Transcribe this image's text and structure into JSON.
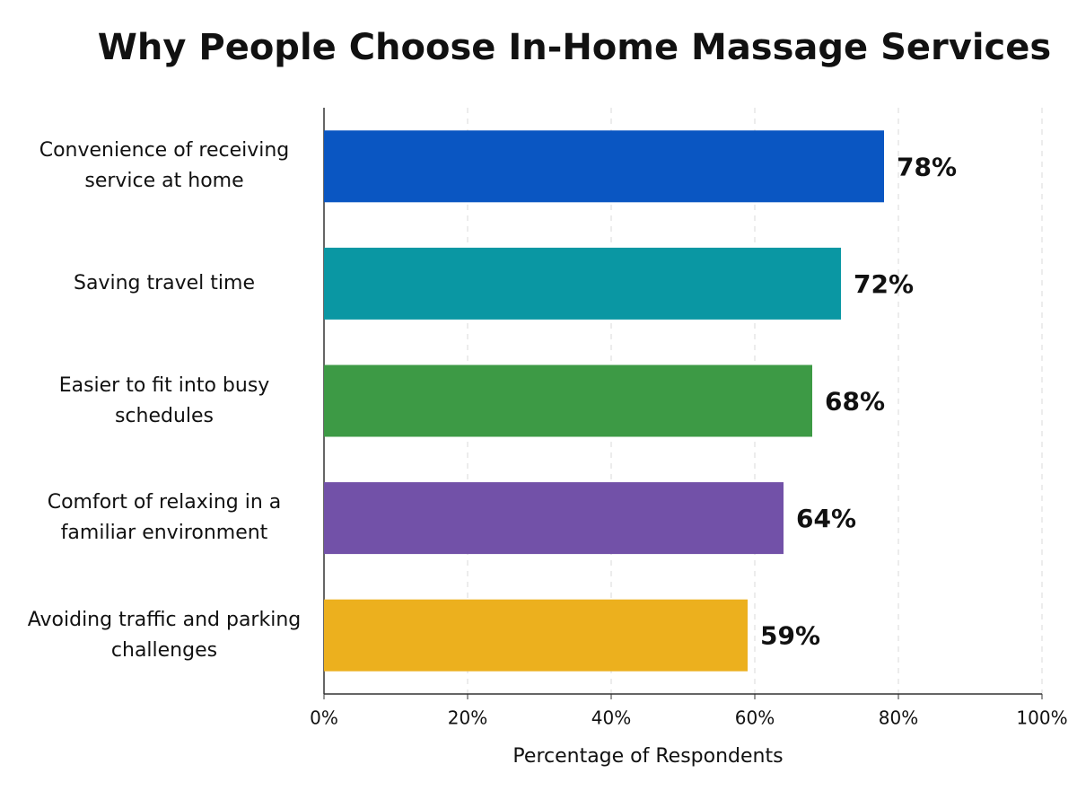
{
  "chart_data": {
    "type": "hbar",
    "title": "Why People Choose In-Home Massage Services",
    "xlabel": "Percentage of Respondents",
    "categories": [
      "Convenience of receiving service at home",
      "Saving travel time",
      "Easier to fit into busy schedules",
      "Comfort of relaxing in a familiar environment",
      "Avoiding traffic and parking challenges"
    ],
    "values": [
      78,
      72,
      68,
      64,
      59
    ],
    "value_labels": [
      "78%",
      "72%",
      "68%",
      "64%",
      "59%"
    ],
    "colors": [
      "#0a56c2",
      "#0a97a3",
      "#3d9a45",
      "#7251a8",
      "#ecb01e"
    ],
    "xlim": [
      0,
      100
    ],
    "xticks": [
      {
        "value": 0,
        "label": "0%"
      },
      {
        "value": 20,
        "label": "20%"
      },
      {
        "value": 40,
        "label": "40%"
      },
      {
        "value": 60,
        "label": "60%"
      },
      {
        "value": 80,
        "label": "80%"
      },
      {
        "value": 100,
        "label": "100%"
      }
    ],
    "grid": true
  }
}
